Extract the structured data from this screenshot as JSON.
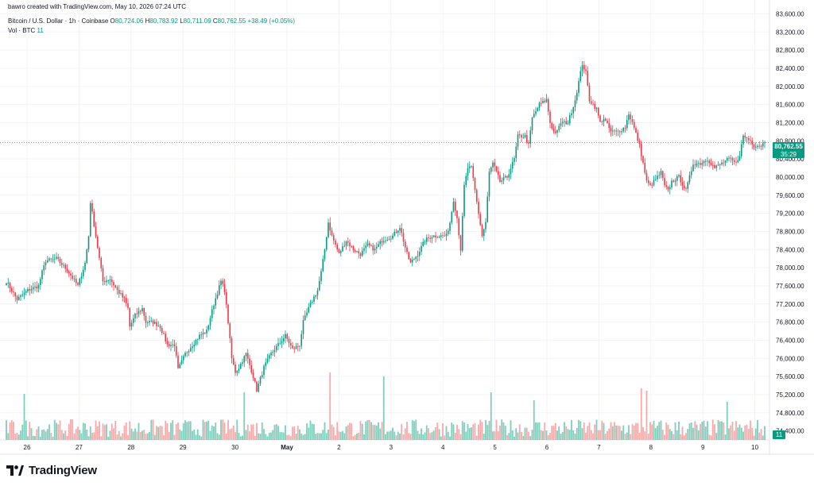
{
  "header": {
    "created_by": "bawro created with TradingView.com, May 10, 2026 07:24 UTC",
    "symbol": "Bitcoin / U.S. Dollar · 1h · Coinbase",
    "o_label": "O",
    "o_value": "80,724.06",
    "h_label": "H",
    "h_value": "80,783.92",
    "l_label": "L",
    "l_value": "80,711.09",
    "c_label": "C",
    "c_value": "80,762.55",
    "change": "+38.49 (+0.05%)",
    "vol_label": "Vol · BTC",
    "vol_value": "11"
  },
  "price_tag": {
    "price": "80,762.55",
    "countdown": "35:29"
  },
  "volume_tag": "11",
  "brand": {
    "name": "TradingView"
  },
  "colors": {
    "up": "#089981",
    "down": "#f23645",
    "up_vol": "#7fcdbb",
    "down_vol": "#f7a9a7",
    "grid": "#f0f3fa"
  },
  "chart_data": {
    "type": "candlestick",
    "y_axis": {
      "ticks": [
        "74,400.00",
        "74,800.00",
        "75,200.00",
        "75,600.00",
        "76,000.00",
        "76,400.00",
        "76,800.00",
        "77,200.00",
        "77,600.00",
        "78,000.00",
        "78,400.00",
        "78,800.00",
        "79,200.00",
        "79,600.00",
        "80,000.00",
        "80,400.00",
        "80,800.00",
        "81,200.00",
        "81,600.00",
        "82,000.00",
        "82,400.00",
        "82,800.00",
        "83,200.00",
        "83,600.00"
      ],
      "range": [
        74200,
        83800
      ]
    },
    "x_axis": {
      "ticks": [
        "26",
        "27",
        "28",
        "29",
        "30",
        "May",
        "2",
        "3",
        "4",
        "5",
        "6",
        "7",
        "8",
        "9",
        "10"
      ]
    },
    "last_price": 80762.55,
    "series_path": [
      [
        0,
        77700
      ],
      [
        6,
        77300
      ],
      [
        12,
        77500
      ],
      [
        18,
        77600
      ],
      [
        20,
        77900
      ],
      [
        22,
        78150
      ],
      [
        28,
        78200
      ],
      [
        34,
        77950
      ],
      [
        40,
        77600
      ],
      [
        44,
        78100
      ],
      [
        46,
        78700
      ],
      [
        47,
        79450
      ],
      [
        50,
        78700
      ],
      [
        54,
        77700
      ],
      [
        58,
        77750
      ],
      [
        62,
        77500
      ],
      [
        66,
        77300
      ],
      [
        68,
        77100
      ],
      [
        69,
        76700
      ],
      [
        72,
        76950
      ],
      [
        76,
        77100
      ],
      [
        78,
        76800
      ],
      [
        82,
        76800
      ],
      [
        86,
        76700
      ],
      [
        90,
        76300
      ],
      [
        94,
        76300
      ],
      [
        96,
        75750
      ],
      [
        100,
        76100
      ],
      [
        104,
        76300
      ],
      [
        108,
        76500
      ],
      [
        112,
        76600
      ],
      [
        114,
        76900
      ],
      [
        116,
        77200
      ],
      [
        120,
        77700
      ],
      [
        122,
        77500
      ],
      [
        124,
        76800
      ],
      [
        126,
        76000
      ],
      [
        128,
        75700
      ],
      [
        130,
        75800
      ],
      [
        134,
        76100
      ],
      [
        138,
        75600
      ],
      [
        140,
        75300
      ],
      [
        144,
        75800
      ],
      [
        148,
        76100
      ],
      [
        152,
        76300
      ],
      [
        156,
        76500
      ],
      [
        160,
        76200
      ],
      [
        164,
        76300
      ],
      [
        166,
        76800
      ],
      [
        170,
        77200
      ],
      [
        174,
        77500
      ],
      [
        176,
        77900
      ],
      [
        178,
        78400
      ],
      [
        180,
        79000
      ],
      [
        182,
        78700
      ],
      [
        186,
        78300
      ],
      [
        190,
        78600
      ],
      [
        194,
        78400
      ],
      [
        198,
        78300
      ],
      [
        202,
        78500
      ],
      [
        206,
        78400
      ],
      [
        210,
        78600
      ],
      [
        216,
        78700
      ],
      [
        220,
        78900
      ],
      [
        224,
        78300
      ],
      [
        226,
        78100
      ],
      [
        230,
        78300
      ],
      [
        234,
        78600
      ],
      [
        238,
        78700
      ],
      [
        242,
        78700
      ],
      [
        246,
        78700
      ],
      [
        248,
        79000
      ],
      [
        250,
        79500
      ],
      [
        252,
        79100
      ],
      [
        254,
        78400
      ],
      [
        256,
        79800
      ],
      [
        258,
        80200
      ],
      [
        260,
        80200
      ],
      [
        264,
        79200
      ],
      [
        266,
        78700
      ],
      [
        268,
        79000
      ],
      [
        270,
        80100
      ],
      [
        272,
        80300
      ],
      [
        276,
        79900
      ],
      [
        280,
        80000
      ],
      [
        284,
        80400
      ],
      [
        286,
        80900
      ],
      [
        290,
        80900
      ],
      [
        292,
        80700
      ],
      [
        294,
        81300
      ],
      [
        298,
        81600
      ],
      [
        302,
        81700
      ],
      [
        304,
        81200
      ],
      [
        306,
        81000
      ],
      [
        308,
        81000
      ],
      [
        310,
        81200
      ],
      [
        314,
        81200
      ],
      [
        318,
        81700
      ],
      [
        322,
        82500
      ],
      [
        324,
        82300
      ],
      [
        326,
        81700
      ],
      [
        330,
        81500
      ],
      [
        332,
        81200
      ],
      [
        334,
        81300
      ],
      [
        338,
        81000
      ],
      [
        342,
        81000
      ],
      [
        346,
        81100
      ],
      [
        348,
        81400
      ],
      [
        350,
        81200
      ],
      [
        354,
        80700
      ],
      [
        356,
        80300
      ],
      [
        358,
        79900
      ],
      [
        360,
        79800
      ],
      [
        364,
        80000
      ],
      [
        366,
        80100
      ],
      [
        368,
        79800
      ],
      [
        370,
        79700
      ],
      [
        372,
        79900
      ],
      [
        376,
        80000
      ],
      [
        380,
        79700
      ],
      [
        384,
        80300
      ],
      [
        388,
        80300
      ],
      [
        392,
        80400
      ],
      [
        396,
        80200
      ],
      [
        400,
        80300
      ],
      [
        404,
        80400
      ],
      [
        408,
        80300
      ],
      [
        410,
        80500
      ],
      [
        412,
        80900
      ],
      [
        416,
        80800
      ],
      [
        418,
        80700
      ],
      [
        422,
        80700
      ],
      [
        424,
        80765
      ]
    ],
    "volume_spikes": [
      [
        3,
        58
      ],
      [
        44,
        60
      ],
      [
        60,
        85
      ],
      [
        70,
        80
      ],
      [
        90,
        60
      ],
      [
        98,
        50
      ],
      [
        118,
        65
      ],
      [
        119,
        62
      ],
      [
        134,
        48
      ],
      [
        152,
        95
      ],
      [
        167,
        108
      ],
      [
        168,
        84
      ],
      [
        186,
        52
      ],
      [
        238,
        132
      ],
      [
        264,
        112
      ],
      [
        268,
        118
      ],
      [
        276,
        77
      ],
      [
        290,
        86
      ],
      [
        320,
        69
      ],
      [
        334,
        51
      ],
      [
        337,
        55
      ],
      [
        355,
        130
      ],
      [
        358,
        55
      ]
    ]
  }
}
